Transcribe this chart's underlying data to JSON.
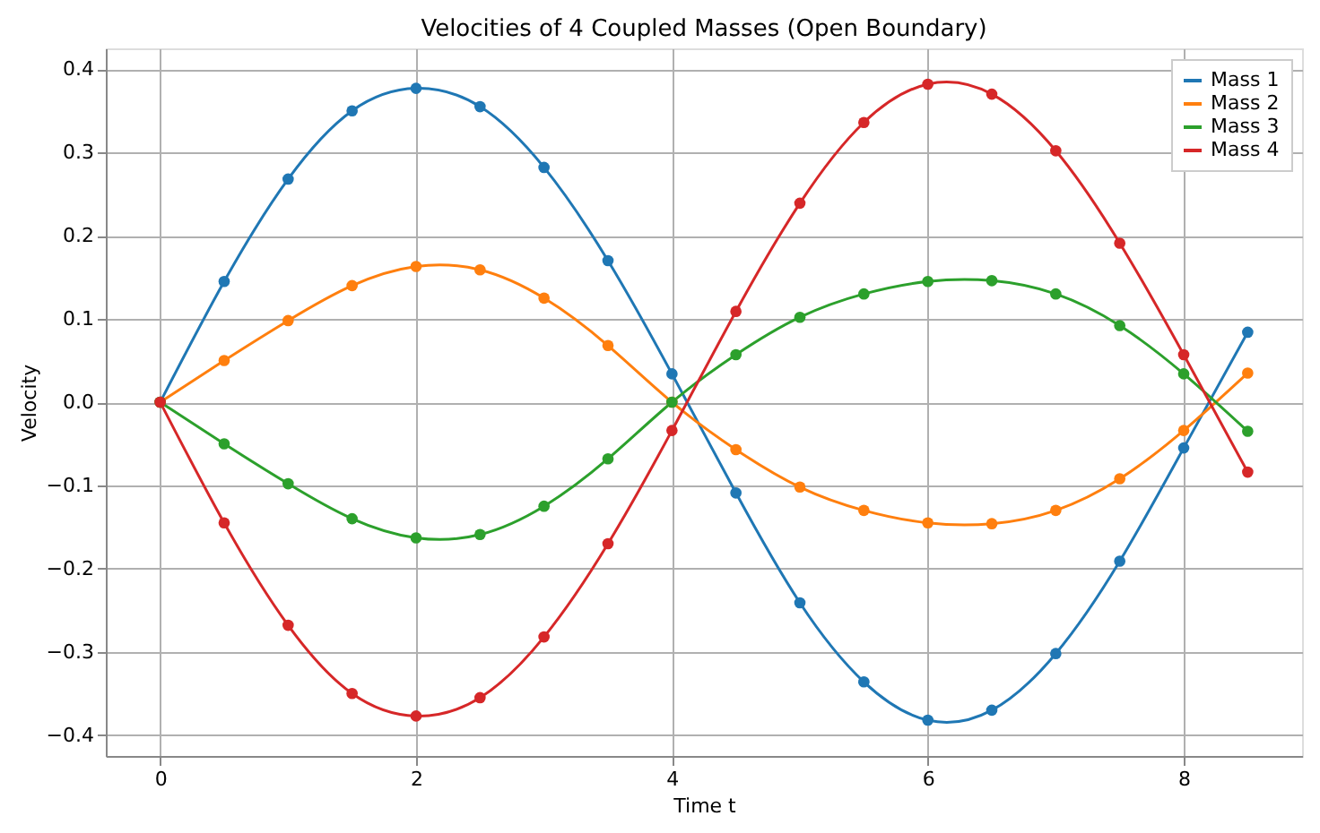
{
  "chart_data": {
    "type": "line",
    "title": "Velocities of 4 Coupled Masses (Open Boundary)",
    "xlabel": "Time t",
    "ylabel": "Velocity",
    "x": [
      0,
      0.5,
      1,
      1.5,
      2,
      2.5,
      3,
      3.5,
      4,
      4.5,
      5,
      5.5,
      6,
      6.5,
      7,
      7.5,
      8,
      8.5
    ],
    "series": [
      {
        "name": "Mass 1",
        "color": "#1f77b4",
        "values": [
          0,
          0.145,
          0.268,
          0.35,
          0.377,
          0.355,
          0.282,
          0.17,
          0.034,
          -0.109,
          -0.241,
          -0.336,
          -0.382,
          -0.37,
          -0.302,
          -0.191,
          -0.055,
          0.084
        ]
      },
      {
        "name": "Mass 2",
        "color": "#ff7f0e",
        "values": [
          0,
          0.05,
          0.098,
          0.14,
          0.163,
          0.159,
          0.125,
          0.068,
          0.0,
          -0.057,
          -0.102,
          -0.13,
          -0.145,
          -0.146,
          -0.13,
          -0.092,
          -0.034,
          0.035
        ]
      },
      {
        "name": "Mass 3",
        "color": "#2ca02c",
        "values": [
          0,
          -0.05,
          -0.098,
          -0.14,
          -0.163,
          -0.159,
          -0.125,
          -0.068,
          0.0,
          0.057,
          0.102,
          0.13,
          0.145,
          0.146,
          0.13,
          0.092,
          0.034,
          -0.035
        ]
      },
      {
        "name": "Mass 4",
        "color": "#d62728",
        "values": [
          0,
          -0.145,
          -0.268,
          -0.35,
          -0.377,
          -0.355,
          -0.282,
          -0.17,
          -0.034,
          0.109,
          0.239,
          0.336,
          0.382,
          0.37,
          0.302,
          0.191,
          0.057,
          -0.084
        ]
      }
    ],
    "xlim": [
      -0.425,
      8.925
    ],
    "xticks": [
      0,
      2,
      4,
      6,
      8
    ],
    "ylim": [
      -0.425,
      0.425
    ],
    "yticks": [
      -0.4,
      -0.3,
      -0.2,
      -0.1,
      {
        "value": 0,
        "label": "0.0"
      },
      0.1,
      0.2,
      0.3,
      0.4
    ],
    "grid": true,
    "legend": "top right",
    "marker": "circle",
    "line_style": "solid"
  }
}
